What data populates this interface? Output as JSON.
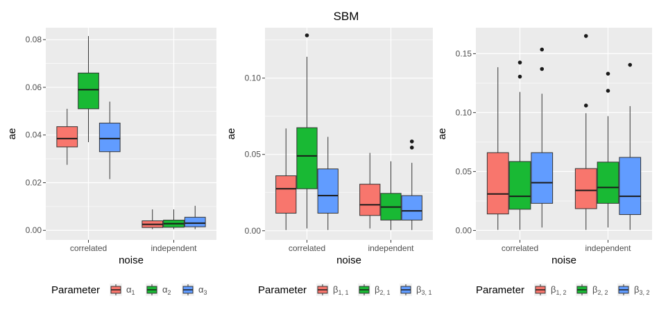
{
  "title": "SBM",
  "chart_data": [
    {
      "type": "box",
      "xlabel": "noise",
      "ylabel": "ae",
      "categories": [
        "correlated",
        "independent"
      ],
      "ylim": [
        -0.004,
        0.085
      ],
      "yticks": [
        0.0,
        0.02,
        0.04,
        0.06,
        0.08
      ],
      "ytick_labels": [
        "0.00",
        "0.02",
        "0.04",
        "0.06",
        "0.08"
      ],
      "legend_title": "Parameter",
      "series": [
        {
          "name": "α₁",
          "sub": "",
          "base": "α",
          "idx": "1",
          "color": "#F8766D",
          "boxes": [
            {
              "min": 0.0275,
              "q1": 0.035,
              "median": 0.0385,
              "q3": 0.0435,
              "max": 0.051,
              "outliers": []
            },
            {
              "min": 0.0005,
              "q1": 0.0012,
              "median": 0.0025,
              "q3": 0.004,
              "max": 0.0088,
              "outliers": []
            }
          ]
        },
        {
          "name": "α₂",
          "base": "α",
          "idx": "2",
          "color": "#19B934",
          "boxes": [
            {
              "min": 0.037,
              "q1": 0.051,
              "median": 0.059,
              "q3": 0.066,
              "max": 0.0815,
              "outliers": []
            },
            {
              "min": 0.0005,
              "q1": 0.0013,
              "median": 0.0028,
              "q3": 0.0043,
              "max": 0.0088,
              "outliers": []
            }
          ]
        },
        {
          "name": "α₃",
          "base": "α",
          "idx": "3",
          "color": "#619CFF",
          "boxes": [
            {
              "min": 0.0215,
              "q1": 0.033,
              "median": 0.0385,
              "q3": 0.045,
              "max": 0.054,
              "outliers": []
            },
            {
              "min": 0.0005,
              "q1": 0.0015,
              "median": 0.003,
              "q3": 0.0055,
              "max": 0.0103,
              "outliers": []
            }
          ]
        }
      ]
    },
    {
      "type": "box",
      "xlabel": "noise",
      "ylabel": "ae",
      "categories": [
        "correlated",
        "independent"
      ],
      "ylim": [
        -0.006,
        0.133
      ],
      "yticks": [
        0.0,
        0.05,
        0.1
      ],
      "ytick_labels": [
        "0.00",
        "0.05",
        "0.10"
      ],
      "legend_title": "Parameter",
      "series": [
        {
          "name": "β₁,₁",
          "base": "β",
          "idx": "1, 1",
          "color": "#F8766D",
          "boxes": [
            {
              "min": 0.0005,
              "q1": 0.0115,
              "median": 0.0275,
              "q3": 0.036,
              "max": 0.067,
              "outliers": []
            },
            {
              "min": 0.0015,
              "q1": 0.01,
              "median": 0.017,
              "q3": 0.0305,
              "max": 0.051,
              "outliers": []
            }
          ]
        },
        {
          "name": "β₂,₁",
          "base": "β",
          "idx": "2, 1",
          "color": "#19B934",
          "boxes": [
            {
              "min": 0.0015,
              "q1": 0.0275,
              "median": 0.049,
              "q3": 0.0675,
              "max": 0.114,
              "outliers": [
                0.128
              ]
            },
            {
              "min": 0.0005,
              "q1": 0.007,
              "median": 0.0155,
              "q3": 0.0245,
              "max": 0.0455,
              "outliers": []
            }
          ]
        },
        {
          "name": "β₃,₁",
          "base": "β",
          "idx": "3, 1",
          "color": "#619CFF",
          "boxes": [
            {
              "min": 0.0005,
              "q1": 0.0115,
              "median": 0.023,
              "q3": 0.0405,
              "max": 0.0615,
              "outliers": []
            },
            {
              "min": 0.0005,
              "q1": 0.007,
              "median": 0.013,
              "q3": 0.023,
              "max": 0.0445,
              "outliers": [
                0.0545,
                0.0585
              ]
            }
          ]
        }
      ]
    },
    {
      "type": "box",
      "xlabel": "noise",
      "ylabel": "ae",
      "categories": [
        "correlated",
        "independent"
      ],
      "ylim": [
        -0.008,
        0.172
      ],
      "yticks": [
        0.0,
        0.05,
        0.1,
        0.15
      ],
      "ytick_labels": [
        "0.00",
        "0.05",
        "0.10",
        "0.15"
      ],
      "legend_title": "Parameter",
      "series": [
        {
          "name": "β₁,₂",
          "base": "β",
          "idx": "1, 2",
          "color": "#F8766D",
          "boxes": [
            {
              "min": 0.0005,
              "q1": 0.014,
              "median": 0.031,
              "q3": 0.066,
              "max": 0.1385,
              "outliers": []
            },
            {
              "min": 0.0005,
              "q1": 0.0185,
              "median": 0.034,
              "q3": 0.0525,
              "max": 0.0995,
              "outliers": [
                0.106,
                0.165
              ]
            }
          ]
        },
        {
          "name": "β₂,₂",
          "base": "β",
          "idx": "2, 2",
          "color": "#19B934",
          "boxes": [
            {
              "min": 0.0005,
              "q1": 0.018,
              "median": 0.029,
              "q3": 0.0585,
              "max": 0.1175,
              "outliers": [
                0.1305,
                0.1425
              ]
            },
            {
              "min": 0.0025,
              "q1": 0.023,
              "median": 0.0365,
              "q3": 0.058,
              "max": 0.097,
              "outliers": [
                0.1185,
                0.133
              ]
            }
          ]
        },
        {
          "name": "β₃,₂",
          "base": "β",
          "idx": "3, 2",
          "color": "#619CFF",
          "boxes": [
            {
              "min": 0.0025,
              "q1": 0.023,
              "median": 0.0405,
              "q3": 0.066,
              "max": 0.116,
              "outliers": [
                0.137,
                0.1535
              ]
            },
            {
              "min": 0.0005,
              "q1": 0.0135,
              "median": 0.029,
              "q3": 0.062,
              "max": 0.1055,
              "outliers": [
                0.1405
              ]
            }
          ]
        }
      ]
    }
  ]
}
